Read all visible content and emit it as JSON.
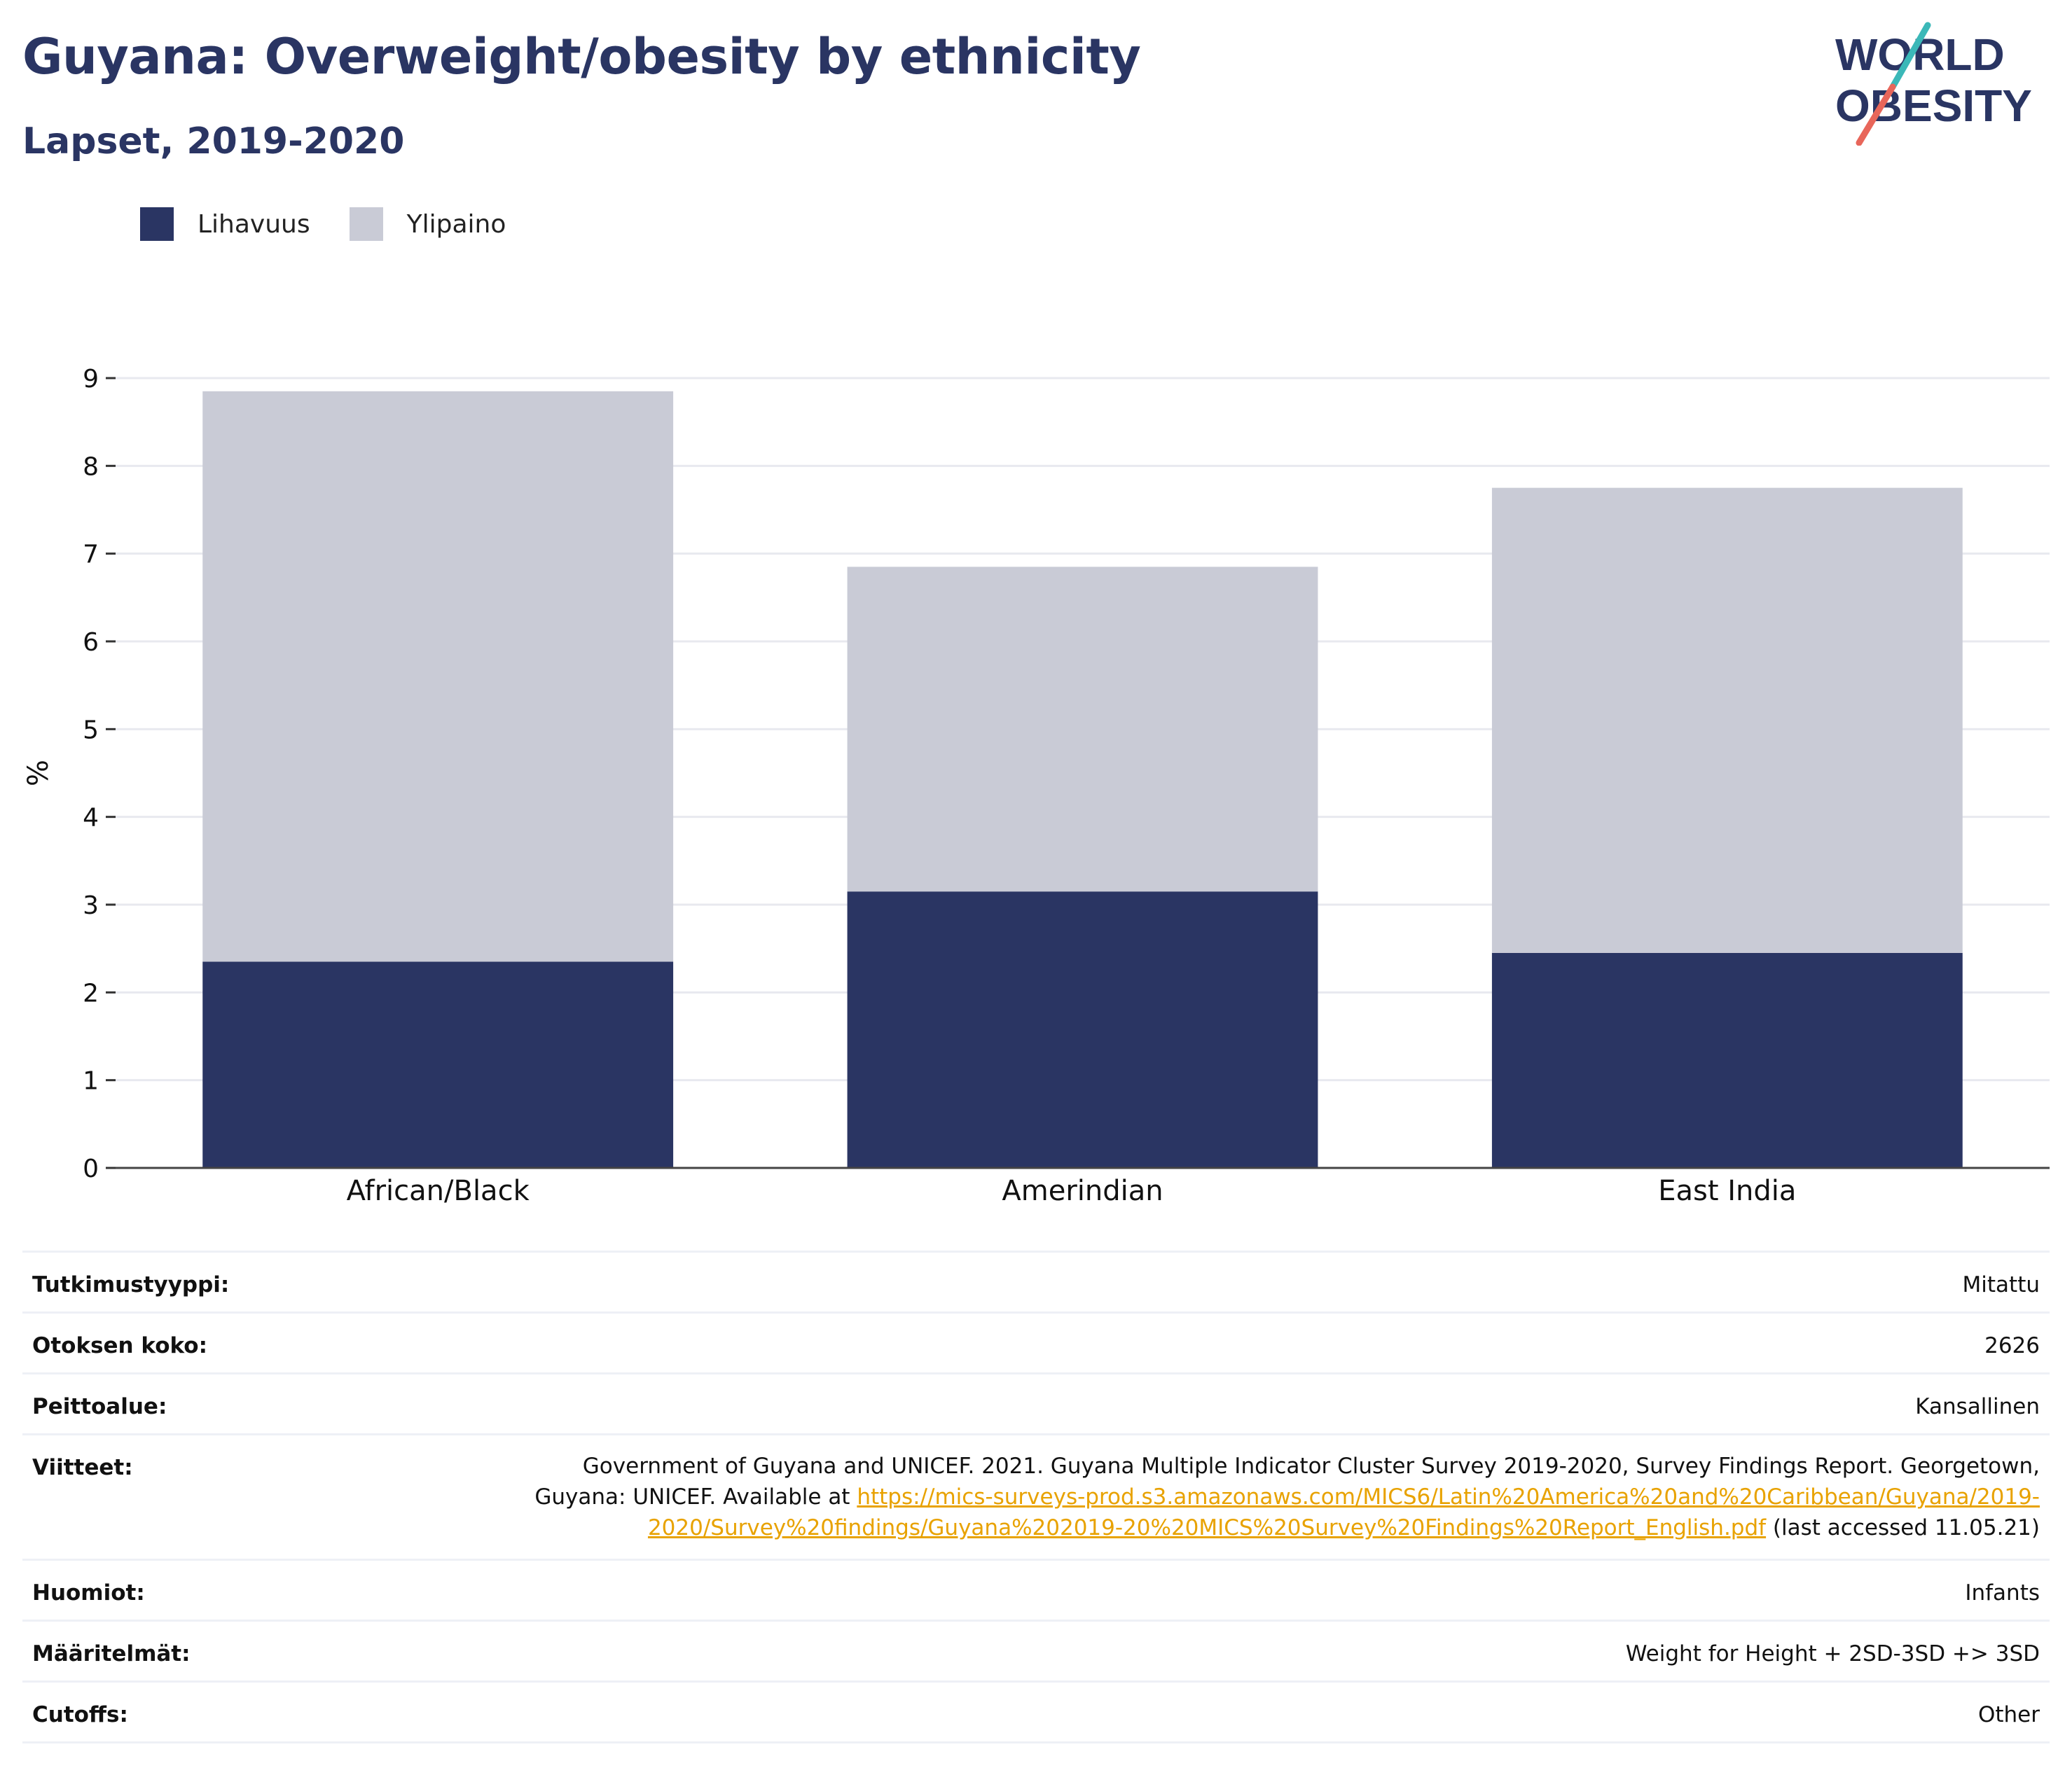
{
  "header": {
    "title": "Guyana: Overweight/obesity by ethnicity",
    "subtitle": "Lapset, 2019-2020",
    "logo_line1": "WORLD",
    "logo_line2": "OBESITY"
  },
  "colors": {
    "obesity": "#2a3563",
    "overweight": "#c9cbd6",
    "title": "#2a3563",
    "link": "#e8a200",
    "logo_teal": "#3bb8b8",
    "logo_coral": "#e8665a"
  },
  "legend": {
    "items": [
      {
        "label": "Lihavuus",
        "color": "#2a3563"
      },
      {
        "label": "Ylipaino",
        "color": "#c9cbd6"
      }
    ]
  },
  "chart_data": {
    "type": "bar",
    "stacked": true,
    "categories": [
      "African/Black",
      "Amerindian",
      "East India"
    ],
    "series": [
      {
        "name": "Lihavuus",
        "values": [
          2.35,
          3.15,
          2.45
        ],
        "color": "#2a3563"
      },
      {
        "name": "Ylipaino",
        "values": [
          6.5,
          3.7,
          5.3
        ],
        "color": "#c9cbd6"
      }
    ],
    "ylabel": "%",
    "ylim": [
      0,
      9
    ],
    "yticks": [
      0,
      1,
      2,
      3,
      4,
      5,
      6,
      7,
      8,
      9
    ],
    "grid": true,
    "legend_position": "top-left"
  },
  "meta": {
    "study_type_label": "Tutkimustyyppi:",
    "study_type_value": "Mitattu",
    "sample_size_label": "Otoksen koko:",
    "sample_size_value": "2626",
    "coverage_label": "Peittoalue:",
    "coverage_value": "Kansallinen",
    "references_label": "Viitteet:",
    "references_text": "Government of Guyana and UNICEF. 2021. Guyana Multiple Indicator Cluster Survey 2019-2020, Survey Findings Report. Georgetown, Guyana: UNICEF. Available at ",
    "references_link": "https://mics-surveys-prod.s3.amazonaws.com/MICS6/Latin%20America%20and%20Caribbean/Guyana/2019-2020/Survey%20findings/Guyana%202019-20%20MICS%20Survey%20Findings%20Report_English.pdf",
    "references_suffix": " (last accessed 11.05.21)",
    "notes_label": "Huomiot:",
    "notes_value": "Infants",
    "definitions_label": "Määritelmät:",
    "definitions_value": "Weight for Height + 2SD-3SD +> 3SD",
    "cutoffs_label": "Cutoffs:",
    "cutoffs_value": "Other"
  }
}
